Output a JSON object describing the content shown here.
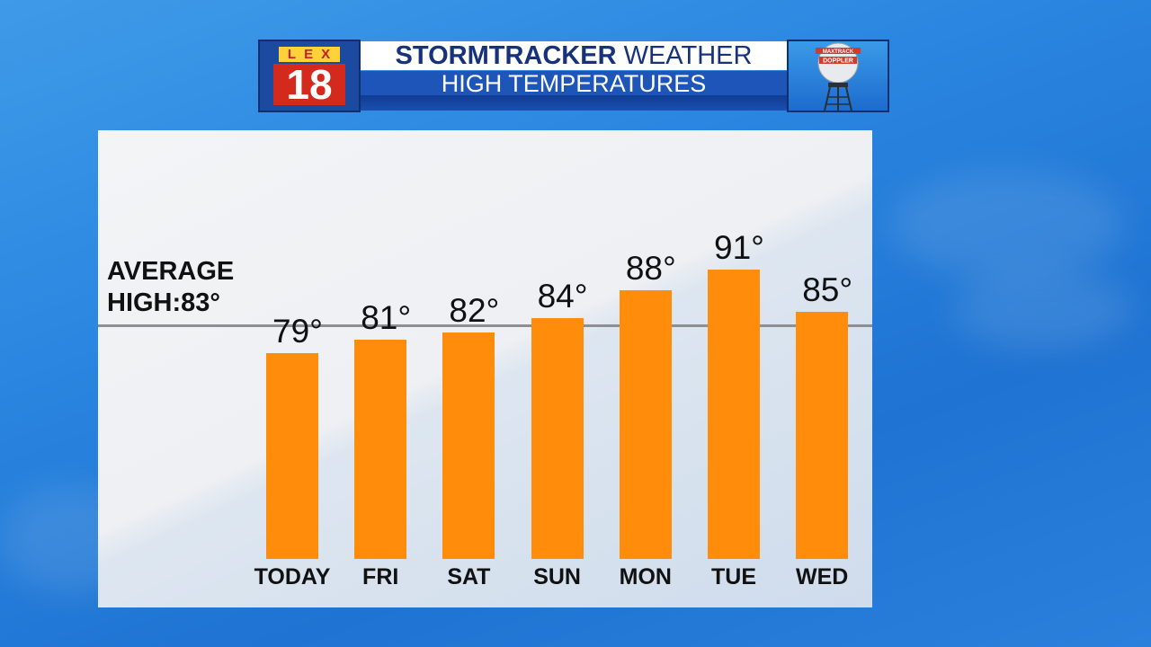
{
  "header": {
    "logo_top": "LEX",
    "logo_number": "18",
    "title_bold": "STORMTRACKER",
    "title_rest": "WEATHER",
    "subtitle": "HIGH TEMPERATURES",
    "tower_label_top": "MAXTRACK",
    "tower_label_bottom": "DOPPLER"
  },
  "average": {
    "label": "AVERAGE\nHIGH:83°",
    "value": 83
  },
  "colors": {
    "bar": "#ff8c0a",
    "average_line": "#8e8f93",
    "title_text": "#17327a",
    "subtitle_band": "#1d56b8"
  },
  "chart_data": {
    "type": "bar",
    "categories": [
      "TODAY",
      "FRI",
      "SAT",
      "SUN",
      "MON",
      "TUE",
      "WED"
    ],
    "values": [
      79,
      81,
      82,
      84,
      88,
      91,
      85
    ],
    "value_labels": [
      "79°",
      "81°",
      "82°",
      "84°",
      "88°",
      "91°",
      "85°"
    ],
    "title": "HIGH TEMPERATURES",
    "reference_line": {
      "label": "AVERAGE\nHIGH:83°",
      "value": 83
    },
    "grid": false
  }
}
